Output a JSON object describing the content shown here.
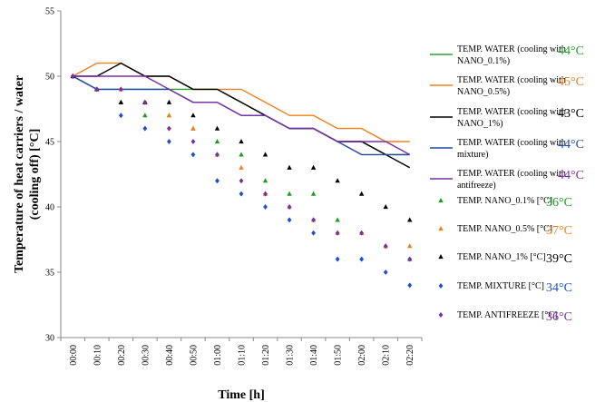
{
  "chart_data": {
    "type": "line",
    "xlabel": "Time [h]",
    "ylabel_lines": [
      "Temperature of heat carriers / water",
      "(cooling off) [°C]"
    ],
    "ylim": [
      30,
      55
    ],
    "yticks": [
      30,
      35,
      40,
      45,
      50,
      55
    ],
    "grid": false,
    "legend_position": "right",
    "categories": [
      "00:00",
      "00:10",
      "00:20",
      "00:30",
      "00:40",
      "00:50",
      "01:00",
      "01:10",
      "01:20",
      "01:30",
      "01:40",
      "01:50",
      "02:00",
      "02:10",
      "02:20"
    ],
    "series": [
      {
        "name_lines": [
          "TEMP. WATER (cooling with",
          "NANO_0.1%)"
        ],
        "kind": "line",
        "color": "#2ca02c",
        "end_temp": "44°C",
        "values": [
          50,
          49,
          49,
          49,
          49,
          49,
          49,
          48,
          47,
          46,
          46,
          45,
          45,
          44,
          44
        ]
      },
      {
        "name_lines": [
          "TEMP. WATER (cooling with",
          "NANO_0.5%)"
        ],
        "kind": "line",
        "color": "#f07f1f",
        "end_temp": "45°C",
        "values": [
          50,
          51,
          51,
          50,
          50,
          49,
          49,
          49,
          48,
          47,
          47,
          46,
          46,
          45,
          45
        ]
      },
      {
        "name_lines": [
          "TEMP. WATER (cooling with",
          "NANO_1%)"
        ],
        "kind": "line",
        "color": "#000000",
        "end_temp": "43°C",
        "values": [
          50,
          50,
          51,
          50,
          50,
          49,
          49,
          48,
          47,
          46,
          46,
          45,
          45,
          44,
          43
        ]
      },
      {
        "name_lines": [
          "TEMP. WATER (cooling with",
          "mixture)"
        ],
        "kind": "line",
        "color": "#2346a8",
        "end_temp": "44°C",
        "values": [
          50,
          49,
          49,
          49,
          49,
          48,
          48,
          47,
          47,
          46,
          46,
          45,
          44,
          44,
          44
        ]
      },
      {
        "name_lines": [
          "TEMP. WATER (cooling with",
          "antifreeze)"
        ],
        "kind": "line",
        "color": "#7b2fa6",
        "end_temp": "44°C",
        "values": [
          50,
          50,
          50,
          50,
          49,
          48,
          48,
          47,
          47,
          46,
          46,
          45,
          45,
          45,
          44
        ]
      },
      {
        "name_lines": [
          "TEMP. NANO_0.1% [°C]"
        ],
        "kind": "marker",
        "marker": "triangle",
        "color": "#1a9e1a",
        "end_temp": "36°C",
        "values": [
          50,
          49,
          48,
          47,
          47,
          46,
          45,
          44,
          42,
          41,
          41,
          39,
          38,
          37,
          36
        ]
      },
      {
        "name_lines": [
          "TEMP. NANO_0.5% [°C]"
        ],
        "kind": "marker",
        "marker": "triangle",
        "color": "#f07f1f",
        "end_temp": "37°C",
        "values": [
          50,
          49,
          49,
          48,
          47,
          46,
          44,
          43,
          41,
          40,
          39,
          38,
          38,
          37,
          37
        ]
      },
      {
        "name_lines": [
          "TEMP. NANO_1% [°C]"
        ],
        "kind": "marker",
        "marker": "triangle",
        "color": "#000000",
        "end_temp": "39°C",
        "values": [
          50,
          49,
          48,
          48,
          48,
          47,
          46,
          45,
          44,
          43,
          43,
          42,
          41,
          40,
          39
        ]
      },
      {
        "name_lines": [
          "TEMP. MIXTURE [°C]"
        ],
        "kind": "marker",
        "marker": "diamond",
        "color": "#1f4fd0",
        "end_temp": "34°C",
        "values": [
          50,
          49,
          47,
          46,
          45,
          44,
          42,
          41,
          40,
          39,
          38,
          36,
          36,
          35,
          34
        ]
      },
      {
        "name_lines": [
          "TEMP. ANTIFREEZE [°C]"
        ],
        "kind": "marker",
        "marker": "diamond",
        "color": "#7b2fa6",
        "end_temp": "36°C",
        "values": [
          50,
          49,
          49,
          48,
          46,
          45,
          44,
          42,
          41,
          40,
          39,
          38,
          38,
          37,
          36
        ]
      }
    ]
  }
}
